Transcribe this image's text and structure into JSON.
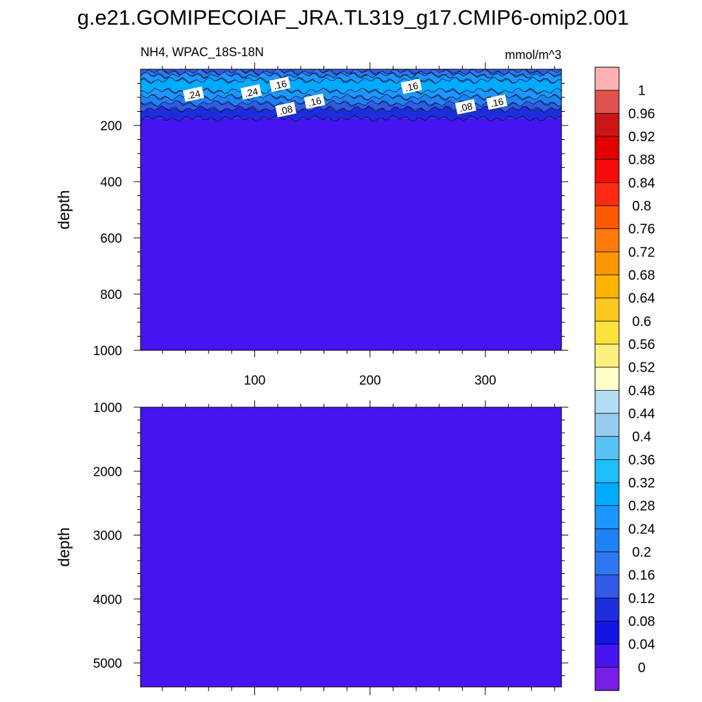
{
  "figure": {
    "title": "g.e21.GOMIPECOIAF_JRA.TL319_g17.CMIP6-omip2.001"
  },
  "chart_data": [
    {
      "type": "heatmap",
      "panel": "upper",
      "left_string": "NH4, WPAC_18S-18N",
      "right_string": "mmol/m^3",
      "xlabel": "",
      "ylabel": "depth",
      "xlim": [
        1,
        366
      ],
      "ylim": [
        1000,
        0
      ],
      "xticks": [
        100,
        200,
        300
      ],
      "yticks": [
        200,
        400,
        600,
        800,
        1000
      ],
      "fill_description_levels": [
        {
          "from": 0,
          "to": 150,
          "value": 0.2
        },
        {
          "from": 150,
          "to": 175,
          "value": 0.08
        },
        {
          "from": 175,
          "to": 1000,
          "value": 0.02
        }
      ],
      "contour_labels": [
        {
          "text": ".24",
          "x": 47,
          "y": 90
        },
        {
          "text": ".24",
          "x": 97,
          "y": 82
        },
        {
          "text": ".16",
          "x": 122,
          "y": 55
        },
        {
          "text": ".16",
          "x": 236,
          "y": 62
        },
        {
          "text": ".08",
          "x": 127,
          "y": 145
        },
        {
          "text": ".16",
          "x": 152,
          "y": 115
        },
        {
          "text": ".08",
          "x": 283,
          "y": 135
        },
        {
          "text": ".16",
          "x": 310,
          "y": 118
        }
      ]
    },
    {
      "type": "heatmap",
      "panel": "lower",
      "xlabel": "",
      "ylabel": "depth",
      "xlim": [
        1,
        366
      ],
      "ylim": [
        5375,
        1000
      ],
      "yticks": [
        1000,
        2000,
        3000,
        4000,
        5000
      ],
      "value": 0.02
    }
  ],
  "colorbar": {
    "labels": [
      "1",
      "0.96",
      "0.92",
      "0.88",
      "0.84",
      "0.8",
      "0.76",
      "0.72",
      "0.68",
      "0.64",
      "0.6",
      "0.56",
      "0.52",
      "0.48",
      "0.44",
      "0.4",
      "0.36",
      "0.32",
      "0.28",
      "0.24",
      "0.2",
      "0.16",
      "0.12",
      "0.08",
      "0.04",
      "0"
    ],
    "colors": [
      "#fcb2b2",
      "#e0524f",
      "#cc1414",
      "#e00000",
      "#f50a0a",
      "#ff2a12",
      "#ff5a00",
      "#ff7a0a",
      "#ff9600",
      "#ffb400",
      "#ffc81e",
      "#ffe13c",
      "#fff07d",
      "#ffffc8",
      "#b4dcf5",
      "#96cdee",
      "#5ac3f5",
      "#1ebeff",
      "#00aaff",
      "#1e96ff",
      "#1e82f5",
      "#2d78f0",
      "#325ae6",
      "#1e2ddc",
      "#1414e6",
      "#4614f0",
      "#781ee6"
    ]
  }
}
